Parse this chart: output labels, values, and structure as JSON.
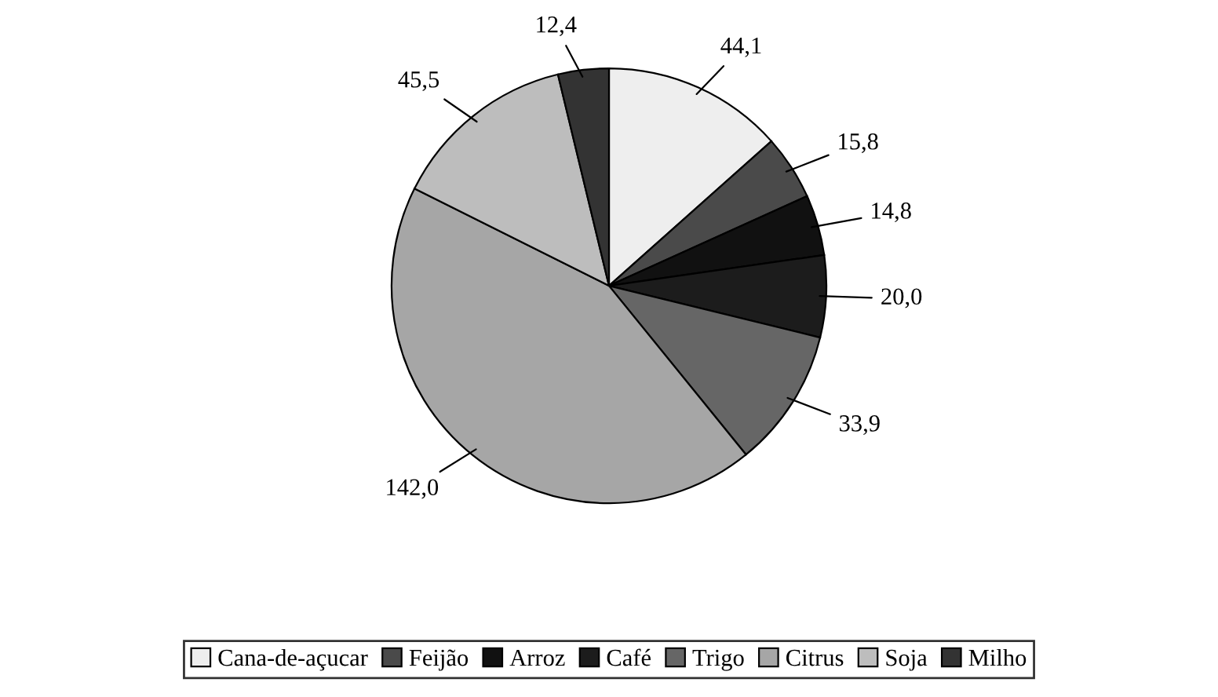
{
  "chart_data": {
    "type": "pie",
    "categories": [
      "Cana-de-açucar",
      "Feijão",
      "Arroz",
      "Café",
      "Trigo",
      "Citrus",
      "Soja",
      "Milho"
    ],
    "values": [
      44.1,
      15.8,
      14.8,
      20.0,
      33.9,
      142.0,
      45.5,
      12.4
    ],
    "value_labels": [
      "44,1",
      "15,8",
      "14,8",
      "20,0",
      "33,9",
      "142,0",
      "45,5",
      "12,4"
    ],
    "colors": [
      "#eeeeee",
      "#4a4a4a",
      "#111111",
      "#1c1c1c",
      "#666666",
      "#a6a6a6",
      "#bdbdbd",
      "#333333"
    ],
    "legend": "bottom"
  }
}
